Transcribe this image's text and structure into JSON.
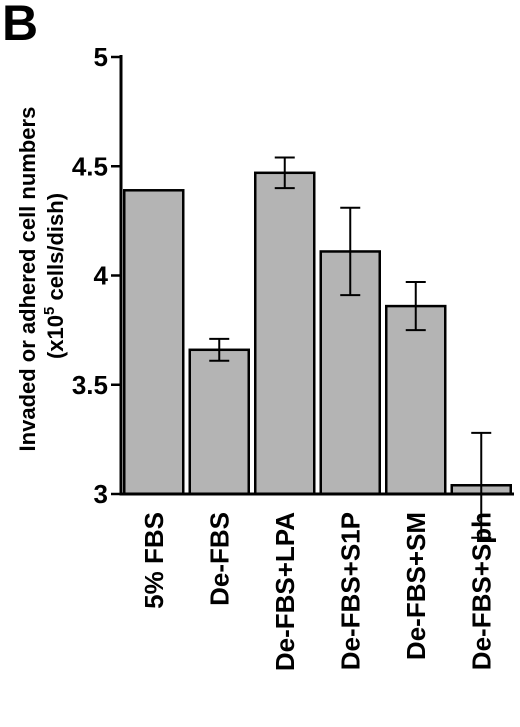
{
  "panel_letter": "B",
  "chart_data": {
    "type": "bar",
    "categories": [
      "5% FBS",
      "De-FBS",
      "De-FBS+LPA",
      "De-FBS+S1P",
      "De-FBS+SM",
      "De-FBS+Sph"
    ],
    "values": [
      4.39,
      3.66,
      4.47,
      4.11,
      3.86,
      3.04
    ],
    "errors": [
      0.0,
      0.05,
      0.07,
      0.2,
      0.11,
      0.24
    ],
    "ylabel_line1": "Invaded or adhered cell numbers",
    "ylabel_line2_prefix": "(x10",
    "ylabel_line2_sup": "5",
    "ylabel_line2_suffix": " cells/dish)",
    "ylim": [
      3,
      5
    ],
    "yticks": [
      3,
      3.5,
      4,
      4.5,
      5
    ],
    "ytick_labels": [
      "3",
      "3.5",
      "4",
      "4.5",
      "5"
    ],
    "bar_color": "#b4b4b4",
    "grid": false
  }
}
